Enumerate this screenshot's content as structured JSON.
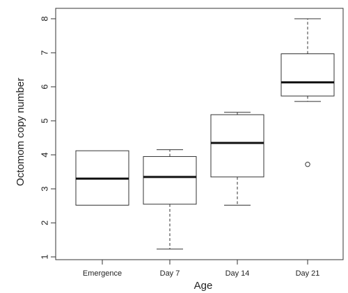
{
  "chart_data": {
    "type": "box",
    "title": "",
    "xlabel": "Age",
    "ylabel": "Octomom copy number",
    "ylim": [
      1,
      8
    ],
    "yticks": [
      1,
      2,
      3,
      4,
      5,
      6,
      7,
      8
    ],
    "grid": false,
    "legend": "none",
    "categories": [
      "Emergence",
      "Day 7",
      "Day 14",
      "Day 21"
    ],
    "boxes": [
      {
        "category": "Emergence",
        "whisker_low": 2.52,
        "q1": 2.52,
        "median": 3.3,
        "q3": 4.12,
        "whisker_high": 4.12,
        "outliers": []
      },
      {
        "category": "Day 7",
        "whisker_low": 1.23,
        "q1": 2.55,
        "median": 3.35,
        "q3": 3.95,
        "whisker_high": 4.15,
        "outliers": []
      },
      {
        "category": "Day 14",
        "whisker_low": 2.52,
        "q1": 3.35,
        "median": 4.35,
        "q3": 5.18,
        "whisker_high": 5.25,
        "outliers": []
      },
      {
        "category": "Day 21",
        "whisker_low": 5.57,
        "q1": 5.73,
        "median": 6.13,
        "q3": 6.97,
        "whisker_high": 8.0,
        "outliers": [
          3.72
        ]
      }
    ]
  }
}
